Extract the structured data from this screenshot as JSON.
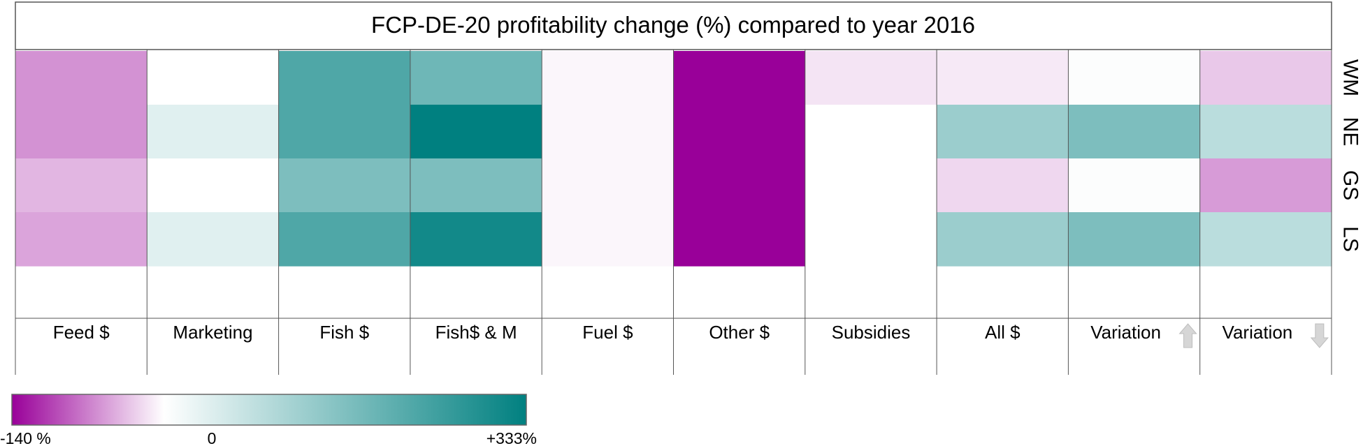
{
  "chart_data": {
    "type": "heatmap",
    "title": "FCP-DE-20 profitability change (%) compared to year 2016",
    "columns": [
      {
        "label": "Feed $",
        "arrow": ""
      },
      {
        "label": "Marketing",
        "arrow": ""
      },
      {
        "label": "Fish $",
        "arrow": ""
      },
      {
        "label": "Fish$ & M",
        "arrow": ""
      },
      {
        "label": "Fuel $",
        "arrow": ""
      },
      {
        "label": "Other $",
        "arrow": ""
      },
      {
        "label": "Subsidies",
        "arrow": ""
      },
      {
        "label": "All $",
        "arrow": ""
      },
      {
        "label": "Variation",
        "arrow": "up"
      },
      {
        "label": "Variation",
        "arrow": "down"
      }
    ],
    "rows": [
      "WM",
      "NE",
      "GS",
      "LS"
    ],
    "values": [
      [
        -60,
        0,
        230,
        190,
        -5,
        -140,
        -15,
        -12,
        4,
        -30
      ],
      [
        -60,
        40,
        230,
        333,
        -5,
        -140,
        0,
        130,
        170,
        90
      ],
      [
        -40,
        0,
        170,
        170,
        -5,
        -140,
        0,
        -22,
        4,
        -55
      ],
      [
        -50,
        40,
        230,
        310,
        -5,
        -140,
        0,
        130,
        170,
        90
      ]
    ],
    "colorscale": {
      "min": -140,
      "max": 333,
      "min_color": "#990099",
      "mid_color": "#ffffff",
      "max_color": "#008080",
      "min_label": "-140 %",
      "mid_label": "0",
      "max_label": "+333%"
    }
  }
}
